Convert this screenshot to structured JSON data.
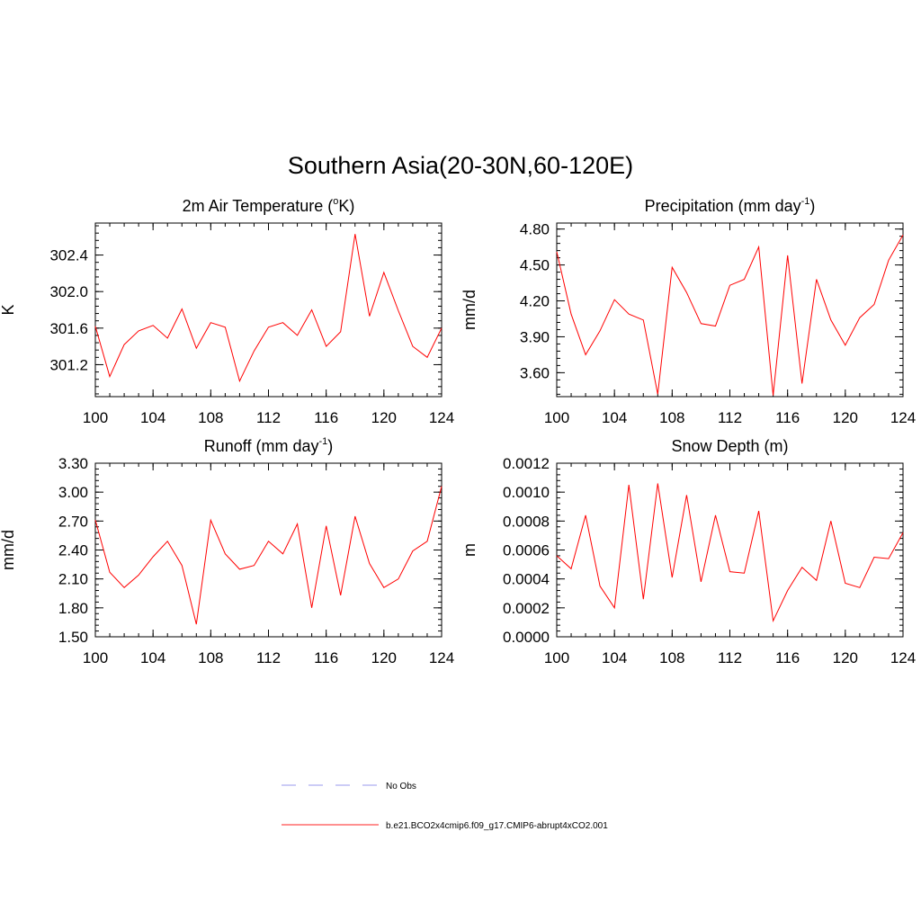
{
  "figure": {
    "title": "Southern Asia(20-30N,60-120E)"
  },
  "legend": {
    "placement": "bottom-center",
    "entries": [
      {
        "label": "No Obs",
        "color": "#9999ee",
        "style": "dashed"
      },
      {
        "label": "b.e21.BCO2x4cmip6.f09_g17.CMIP6-abrupt4xCO2.001",
        "color": "#ff2222",
        "style": "solid"
      }
    ]
  },
  "chart_data": [
    {
      "type": "line",
      "title": "2m Air Temperature (°K)",
      "title_parts": [
        "2m Air Temperature (",
        "o",
        "K)"
      ],
      "ylabel": "K",
      "xlim": [
        100,
        124
      ],
      "ylim": [
        300.85,
        302.75
      ],
      "xticks": [
        100,
        104,
        108,
        112,
        116,
        120,
        124
      ],
      "xtick_labels": [
        "100",
        "104",
        "108",
        "112",
        "116",
        "120",
        "124"
      ],
      "yticks": [
        301.2,
        301.6,
        302.0,
        302.4
      ],
      "ytick_labels": [
        "301.2",
        "301.6",
        "302.0",
        "302.4"
      ],
      "series": [
        {
          "color": "#ff0000",
          "x": [
            100,
            101,
            102,
            103,
            104,
            105,
            106,
            107,
            108,
            109,
            110,
            111,
            112,
            113,
            114,
            115,
            116,
            117,
            118,
            119,
            120,
            121,
            122,
            123,
            124
          ],
          "values": [
            301.62,
            301.07,
            301.42,
            301.57,
            301.63,
            301.49,
            301.81,
            301.38,
            301.66,
            301.61,
            301.02,
            301.35,
            301.61,
            301.66,
            301.52,
            301.8,
            301.4,
            301.56,
            302.63,
            301.73,
            302.21,
            301.79,
            301.4,
            301.28,
            301.6
          ]
        }
      ]
    },
    {
      "type": "line",
      "title": "Precipitation (mm day-1)",
      "title_parts": [
        "Precipitation (mm day",
        "-1",
        ")"
      ],
      "ylabel": "mm/d",
      "xlim": [
        100,
        124
      ],
      "ylim": [
        3.4,
        4.85
      ],
      "xticks": [
        100,
        104,
        108,
        112,
        116,
        120,
        124
      ],
      "xtick_labels": [
        "100",
        "104",
        "108",
        "112",
        "116",
        "120",
        "124"
      ],
      "yticks": [
        3.6,
        3.9,
        4.2,
        4.5,
        4.8
      ],
      "ytick_labels": [
        "3.60",
        "3.90",
        "4.20",
        "4.50",
        "4.80"
      ],
      "series": [
        {
          "color": "#ff0000",
          "x": [
            100,
            101,
            102,
            103,
            104,
            105,
            106,
            107,
            108,
            109,
            110,
            111,
            112,
            113,
            114,
            115,
            116,
            117,
            118,
            119,
            120,
            121,
            122,
            123,
            124
          ],
          "values": [
            4.61,
            4.09,
            3.75,
            3.95,
            4.21,
            4.09,
            4.04,
            3.42,
            4.48,
            4.27,
            4.01,
            3.99,
            4.33,
            4.38,
            4.65,
            3.41,
            4.58,
            3.51,
            4.38,
            4.04,
            3.83,
            4.06,
            4.17,
            4.54,
            4.75
          ]
        }
      ]
    },
    {
      "type": "line",
      "title": "Runoff (mm day-1)",
      "title_parts": [
        "Runoff (mm day",
        "-1",
        ")"
      ],
      "ylabel": "mm/d",
      "xlim": [
        100,
        124
      ],
      "ylim": [
        1.5,
        3.3
      ],
      "xticks": [
        100,
        104,
        108,
        112,
        116,
        120,
        124
      ],
      "xtick_labels": [
        "100",
        "104",
        "108",
        "112",
        "116",
        "120",
        "124"
      ],
      "yticks": [
        1.5,
        1.8,
        2.1,
        2.4,
        2.7,
        3.0,
        3.3
      ],
      "ytick_labels": [
        "1.50",
        "1.80",
        "2.10",
        "2.40",
        "2.70",
        "3.00",
        "3.30"
      ],
      "series": [
        {
          "color": "#ff0000",
          "x": [
            100,
            101,
            102,
            103,
            104,
            105,
            106,
            107,
            108,
            109,
            110,
            111,
            112,
            113,
            114,
            115,
            116,
            117,
            118,
            119,
            120,
            121,
            122,
            123,
            124
          ],
          "values": [
            2.71,
            2.17,
            2.01,
            2.14,
            2.33,
            2.49,
            2.24,
            1.63,
            2.71,
            2.36,
            2.2,
            2.24,
            2.49,
            2.36,
            2.67,
            1.8,
            2.65,
            1.93,
            2.75,
            2.26,
            2.01,
            2.1,
            2.39,
            2.49,
            3.06
          ]
        }
      ]
    },
    {
      "type": "line",
      "title": "Snow Depth (m)",
      "title_parts": [
        "Snow Depth (m)"
      ],
      "ylabel": "m",
      "xlim": [
        100,
        124
      ],
      "ylim": [
        0.0,
        0.0012
      ],
      "xticks": [
        100,
        104,
        108,
        112,
        116,
        120,
        124
      ],
      "xtick_labels": [
        "100",
        "104",
        "108",
        "112",
        "116",
        "120",
        "124"
      ],
      "yticks": [
        0.0,
        0.0002,
        0.0004,
        0.0006,
        0.0008,
        0.001,
        0.0012
      ],
      "ytick_labels": [
        "0.0000",
        "0.0002",
        "0.0004",
        "0.0006",
        "0.0008",
        "0.0010",
        "0.0012"
      ],
      "series": [
        {
          "color": "#ff0000",
          "x": [
            100,
            101,
            102,
            103,
            104,
            105,
            106,
            107,
            108,
            109,
            110,
            111,
            112,
            113,
            114,
            115,
            116,
            117,
            118,
            119,
            120,
            121,
            122,
            123,
            124
          ],
          "values": [
            0.00056,
            0.00047,
            0.00084,
            0.00035,
            0.0002,
            0.00105,
            0.00026,
            0.00106,
            0.00041,
            0.00098,
            0.00038,
            0.00084,
            0.00045,
            0.00044,
            0.00087,
            0.00011,
            0.00032,
            0.00048,
            0.00039,
            0.0008,
            0.00037,
            0.00034,
            0.00055,
            0.00054,
            0.00072
          ]
        }
      ]
    }
  ]
}
